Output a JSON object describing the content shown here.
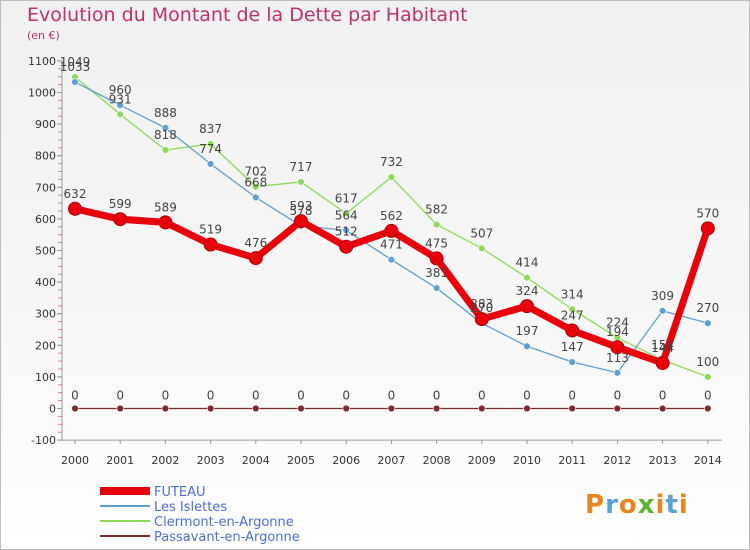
{
  "title": "Evolution du Montant de la Dette par Habitant",
  "unit": "(en €)",
  "logo": {
    "text": "Proxiti",
    "colors": [
      "#e9851c",
      "#5aa3d0",
      "#e9851c",
      "#5ab52f",
      "#e9851c",
      "#5aa3d0",
      "#e9851c"
    ]
  },
  "chart_data": {
    "type": "line",
    "title": "Evolution du Montant de la Dette par Habitant",
    "unit": "(en €)",
    "x": [
      "2000",
      "2001",
      "2002",
      "2003",
      "2004",
      "2005",
      "2006",
      "2007",
      "2008",
      "2009",
      "2010",
      "2011",
      "2012",
      "2013",
      "2014"
    ],
    "ylim": [
      -100,
      1100
    ],
    "yticks": [
      -100,
      0,
      100,
      200,
      300,
      400,
      500,
      600,
      700,
      800,
      900,
      1000,
      1100
    ],
    "grid": false,
    "legend_position": "bottom-left",
    "series": [
      {
        "name": "FUTEAU",
        "color": "#e8000b",
        "width": 7,
        "values": [
          632,
          599,
          589,
          519,
          476,
          593,
          512,
          562,
          475,
          283,
          324,
          247,
          194,
          144,
          570
        ],
        "labels": [
          "632",
          "599",
          "589",
          "519",
          "476",
          "593",
          "512",
          "562",
          "475",
          "283",
          "324",
          "247",
          "194",
          "144",
          "570"
        ]
      },
      {
        "name": "Les Islettes",
        "color": "#5fa0d2",
        "width": 1.3,
        "values": [
          1033,
          960,
          888,
          774,
          668,
          578,
          564,
          471,
          381,
          270,
          197,
          147,
          113,
          309,
          270
        ],
        "labels": [
          "1033",
          "960",
          "888",
          "774",
          "668",
          "578",
          "564",
          "471",
          "381",
          "270",
          "197",
          "147",
          "113",
          "309",
          "270"
        ]
      },
      {
        "name": "Clermont-en-Argonne",
        "color": "#8ed957",
        "width": 1.3,
        "values": [
          1049,
          931,
          818,
          837,
          702,
          717,
          617,
          732,
          582,
          507,
          414,
          314,
          224,
          154,
          100
        ],
        "labels": [
          "1049",
          "931",
          "818",
          "837",
          "702",
          "717",
          "617",
          "732",
          "582",
          "507",
          "414",
          "314",
          "224",
          "154",
          "100"
        ]
      },
      {
        "name": "Passavant-en-Argonne",
        "color": "#7a2b2b",
        "width": 1.3,
        "values": [
          0,
          0,
          0,
          0,
          0,
          0,
          0,
          0,
          0,
          0,
          0,
          0,
          0,
          0,
          0
        ],
        "labels": [
          "0",
          "0",
          "0",
          "0",
          "0",
          "0",
          "0",
          "0",
          "0",
          "0",
          "0",
          "0",
          "0",
          "0",
          "0"
        ]
      }
    ]
  }
}
